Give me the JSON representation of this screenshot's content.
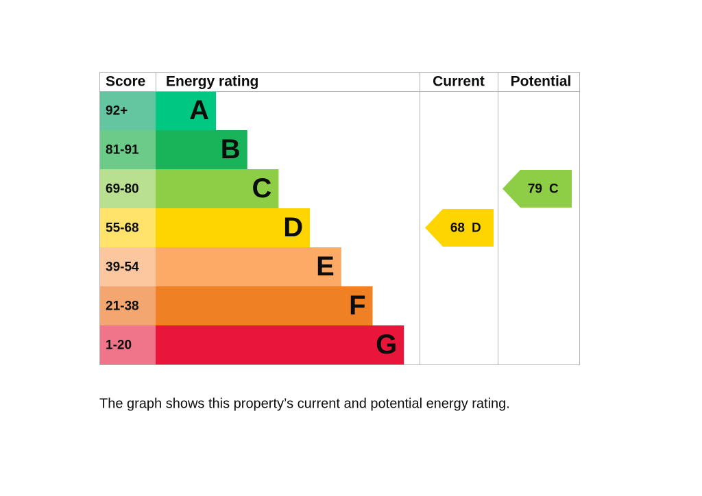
{
  "header": {
    "score": "Score",
    "rating": "Energy rating",
    "current": "Current",
    "potential": "Potential"
  },
  "bands": [
    {
      "score": "92+",
      "letter": "A",
      "color": "#00c781",
      "score_color": "#63c6a0"
    },
    {
      "score": "81-91",
      "letter": "B",
      "color": "#19b459",
      "score_color": "#6dcb8a"
    },
    {
      "score": "69-80",
      "letter": "C",
      "color": "#8dce46",
      "score_color": "#b8e090"
    },
    {
      "score": "55-68",
      "letter": "D",
      "color": "#ffd500",
      "score_color": "#ffe36b"
    },
    {
      "score": "39-54",
      "letter": "E",
      "color": "#fcaa65",
      "score_color": "#fcc69e"
    },
    {
      "score": "21-38",
      "letter": "F",
      "color": "#ef8023",
      "score_color": "#f3a66f"
    },
    {
      "score": "1-20",
      "letter": "G",
      "color": "#e9153b",
      "score_color": "#f0758a"
    }
  ],
  "current": {
    "score": 68,
    "rating": "D"
  },
  "potential": {
    "score": 79,
    "rating": "C"
  },
  "caption": "The graph shows this property’s current and potential energy rating."
}
